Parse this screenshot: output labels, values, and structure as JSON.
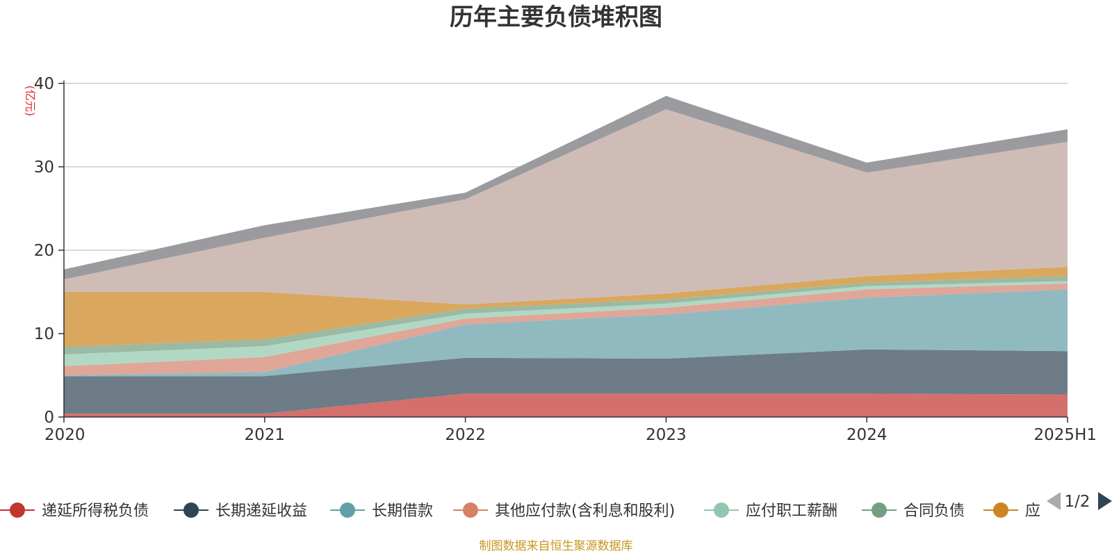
{
  "chart_data": {
    "type": "area",
    "stacked": true,
    "title": "历年主要负债堆积图",
    "unit_label": "(亿元)",
    "categories": [
      "2020",
      "2021",
      "2022",
      "2023",
      "2024",
      "2025H1"
    ],
    "ylim": [
      0,
      40
    ],
    "yticks": [
      "0",
      "10",
      "20",
      "30",
      "40"
    ],
    "grid": true,
    "legend_position": "bottom",
    "series": [
      {
        "name": "递延所得税负债",
        "color": "#c23531",
        "fill": "#d4706c",
        "values": [
          0.4,
          0.4,
          2.8,
          2.8,
          2.8,
          2.7
        ]
      },
      {
        "name": "长期递延收益",
        "color": "#2f4554",
        "fill": "#6d7c87",
        "values": [
          4.5,
          4.5,
          4.3,
          4.2,
          5.3,
          5.2
        ]
      },
      {
        "name": "长期借款",
        "color": "#61a0a8",
        "fill": "#90bac0",
        "values": [
          0.1,
          0.5,
          4.0,
          5.3,
          6.2,
          7.4
        ]
      },
      {
        "name": "其他应付款(含利息和股利)",
        "color": "#d48265",
        "fill": "#e0a697",
        "values": [
          1.1,
          1.8,
          0.7,
          0.8,
          1.0,
          0.7
        ]
      },
      {
        "name": "应付职工薪酬",
        "color": "#91c7ae",
        "fill": "#b1d8c5",
        "values": [
          1.4,
          1.3,
          0.6,
          0.5,
          0.4,
          0.3
        ]
      },
      {
        "name": "合同负债",
        "color": "#749f83",
        "fill": "#9bb9a3",
        "values": [
          0.9,
          0.8,
          0.6,
          0.5,
          0.4,
          0.6
        ]
      },
      {
        "name": "应付账款",
        "color": "#ca8622",
        "fill": "#d9a85e",
        "values": [
          6.6,
          5.7,
          0.5,
          0.7,
          0.8,
          1.1
        ]
      },
      {
        "name": "",
        "color": "#bda29a",
        "fill": "#cfbcb7",
        "values": [
          1.5,
          6.5,
          12.6,
          22.1,
          12.4,
          15.0
        ]
      },
      {
        "name": "",
        "color": "#6e7074",
        "fill": "#9b9b9f",
        "values": [
          1.2,
          1.5,
          0.8,
          1.6,
          1.2,
          1.5
        ]
      }
    ]
  },
  "legend": {
    "visible_labels": [
      "递延所得税负债",
      "长期递延收益",
      "长期借款",
      "其他应付款(含利息和股利)",
      "应付职工薪酬",
      "合同负债",
      "应"
    ],
    "page": "1/2"
  },
  "footer": {
    "source": "制图数据来自恒生聚源数据库"
  }
}
